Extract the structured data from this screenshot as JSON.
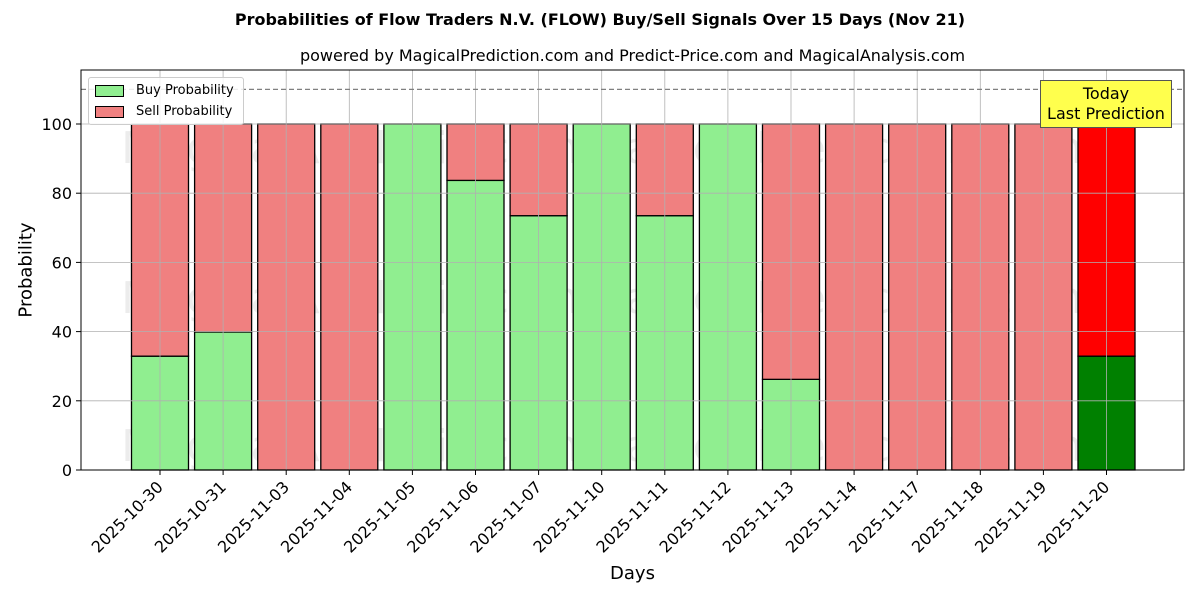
{
  "chart_data": {
    "type": "bar",
    "stacked": true,
    "title": "Probabilities of Flow Traders N.V. (FLOW) Buy/Sell Signals Over 15 Days (Nov 21)",
    "subtitle": "powered by MagicalPrediction.com and Predict-Price.com and MagicalAnalysis.com",
    "xlabel": "Days",
    "ylabel": "Probability",
    "ylim": [
      0,
      115
    ],
    "yticks": [
      0,
      20,
      40,
      60,
      80,
      100
    ],
    "grid": true,
    "reference_line": {
      "y": 110,
      "style": "dashed",
      "color": "#808080"
    },
    "legend_position": "upper left",
    "categories": [
      "2025-10-30",
      "2025-10-31",
      "2025-11-03",
      "2025-11-04",
      "2025-11-05",
      "2025-11-06",
      "2025-11-07",
      "2025-11-10",
      "2025-11-11",
      "2025-11-12",
      "2025-11-13",
      "2025-11-14",
      "2025-11-17",
      "2025-11-18",
      "2025-11-19",
      "2025-11-20"
    ],
    "series": [
      {
        "name": "Buy Probability",
        "color": "#90ee90",
        "values": [
          32.9,
          39.9,
          0,
          0,
          100,
          83.7,
          73.5,
          100,
          73.5,
          100,
          26.2,
          0,
          0,
          0,
          0,
          32.9
        ]
      },
      {
        "name": "Sell Probability",
        "color": "#f08080",
        "values": [
          67.1,
          60.1,
          100,
          100,
          0,
          16.3,
          26.5,
          0,
          26.5,
          0,
          73.8,
          100,
          100,
          100,
          100,
          67.1
        ]
      }
    ],
    "highlight": {
      "index": 15,
      "buy_color": "#008000",
      "sell_color": "#ff0000",
      "annotation": [
        "Today",
        "Last Prediction"
      ]
    },
    "watermarks": [
      "MagicalAnalysis.com",
      "MagicalPrediction.com"
    ]
  },
  "legend": {
    "buy": "Buy Probability",
    "sell": "Sell Probability"
  },
  "annotation": {
    "line1": "Today",
    "line2": "Last Prediction"
  }
}
